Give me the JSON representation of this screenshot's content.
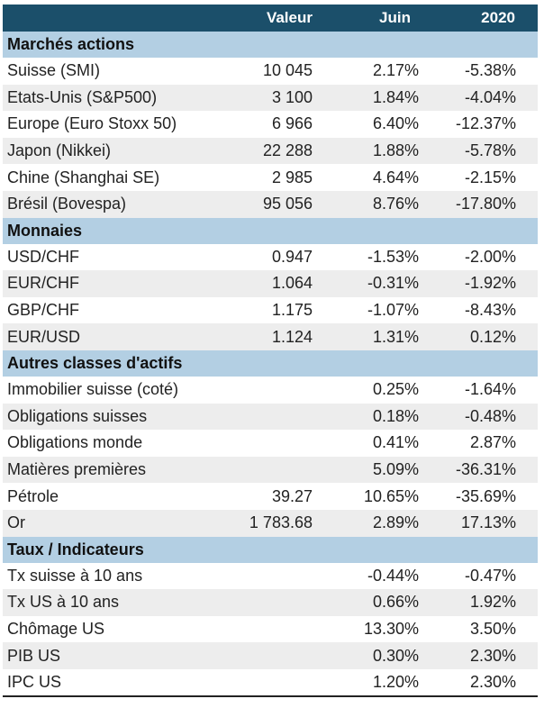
{
  "header": {
    "name": "",
    "valeur": "Valeur",
    "juin": "Juin",
    "year": "2020"
  },
  "sections": [
    {
      "title": "Marchés actions",
      "rows": [
        {
          "name": "Suisse (SMI)",
          "valeur": "10 045",
          "juin": "2.17%",
          "year": "-5.38%"
        },
        {
          "name": "Etats-Unis (S&P500)",
          "valeur": "3 100",
          "juin": "1.84%",
          "year": "-4.04%"
        },
        {
          "name": "Europe (Euro Stoxx 50)",
          "valeur": "6 966",
          "juin": "6.40%",
          "year": "-12.37%"
        },
        {
          "name": "Japon (Nikkei)",
          "valeur": "22 288",
          "juin": "1.88%",
          "year": "-5.78%"
        },
        {
          "name": "Chine (Shanghai SE)",
          "valeur": "2 985",
          "juin": "4.64%",
          "year": "-2.15%"
        },
        {
          "name": "Brésil (Bovespa)",
          "valeur": "95 056",
          "juin": "8.76%",
          "year": "-17.80%"
        }
      ]
    },
    {
      "title": "Monnaies",
      "rows": [
        {
          "name": "USD/CHF",
          "valeur": "0.947",
          "juin": "-1.53%",
          "year": "-2.00%"
        },
        {
          "name": "EUR/CHF",
          "valeur": "1.064",
          "juin": "-0.31%",
          "year": "-1.92%"
        },
        {
          "name": "GBP/CHF",
          "valeur": "1.175",
          "juin": "-1.07%",
          "year": "-8.43%"
        },
        {
          "name": "EUR/USD",
          "valeur": "1.124",
          "juin": "1.31%",
          "year": "0.12%"
        }
      ]
    },
    {
      "title": "Autres classes d'actifs",
      "rows": [
        {
          "name": "Immobilier suisse (coté)",
          "valeur": "",
          "juin": "0.25%",
          "year": "-1.64%"
        },
        {
          "name": "Obligations suisses",
          "valeur": "",
          "juin": "0.18%",
          "year": "-0.48%"
        },
        {
          "name": "Obligations monde",
          "valeur": "",
          "juin": "0.41%",
          "year": "2.87%"
        },
        {
          "name": "Matières premières",
          "valeur": "",
          "juin": "5.09%",
          "year": "-36.31%"
        },
        {
          "name": "Pétrole",
          "valeur": "39.27",
          "juin": "10.65%",
          "year": "-35.69%"
        },
        {
          "name": "Or",
          "valeur": "1 783.68",
          "juin": "2.89%",
          "year": "17.13%"
        }
      ]
    },
    {
      "title": "Taux / Indicateurs",
      "rows": [
        {
          "name": "Tx suisse à 10 ans",
          "valeur": "",
          "juin": "-0.44%",
          "year": "-0.47%"
        },
        {
          "name": "Tx US à 10 ans",
          "valeur": "",
          "juin": "0.66%",
          "year": "1.92%"
        },
        {
          "name": "Chômage US",
          "valeur": "",
          "juin": "13.30%",
          "year": "3.50%"
        },
        {
          "name": "PIB US",
          "valeur": "",
          "juin": "0.30%",
          "year": "2.30%"
        },
        {
          "name": "IPC US",
          "valeur": "",
          "juin": "1.20%",
          "year": "2.30%"
        }
      ]
    }
  ]
}
